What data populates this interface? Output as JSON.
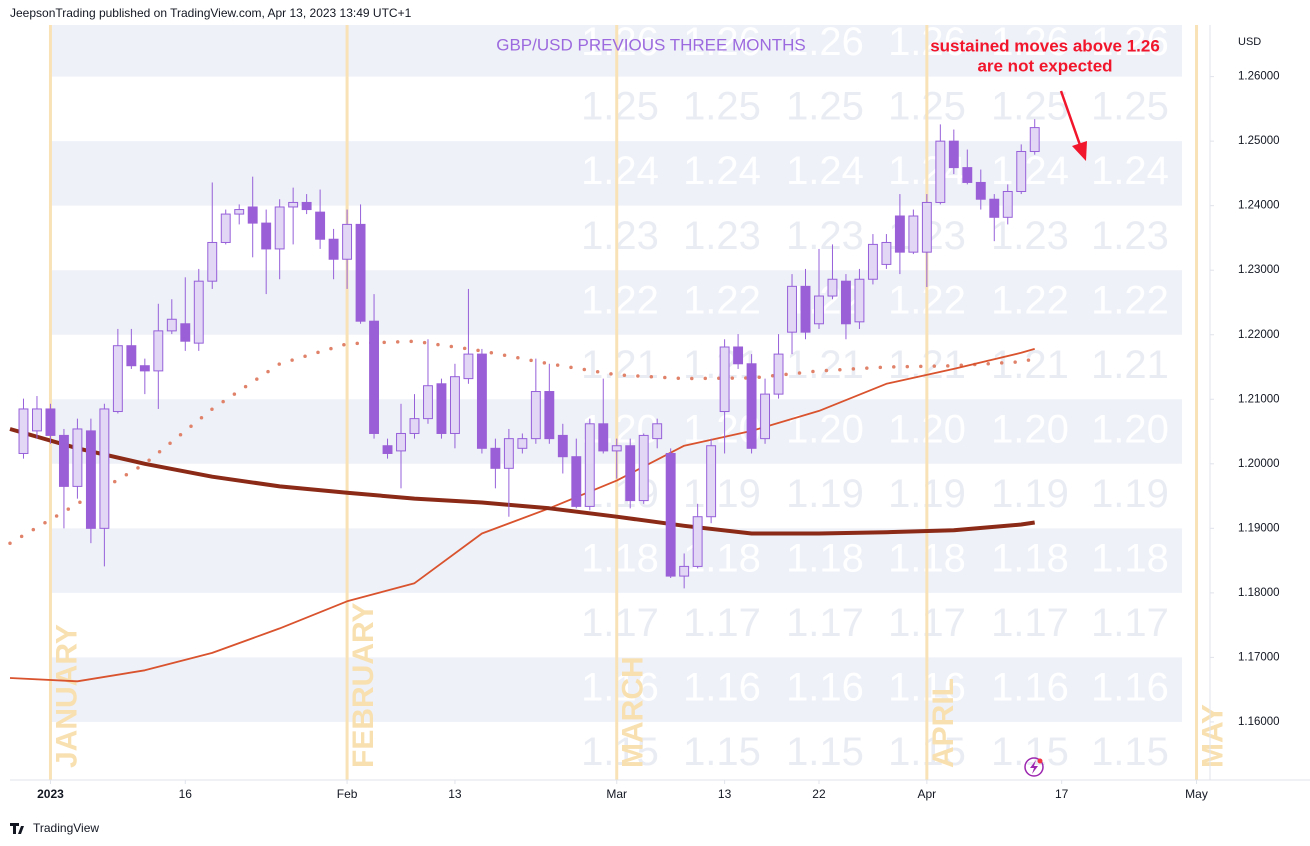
{
  "header": "JeepsonTrading published on TradingView.com, Apr 13, 2023 13:49 UTC+1",
  "footer": "TradingView",
  "chart_data": {
    "type": "candlestick",
    "title": "GBP/USD PREVIOUS THREE MONTHS",
    "annotation": [
      "sustained moves above 1.26",
      "are not expected"
    ],
    "y_axis_label": "USD",
    "x": [
      "2022-12-29",
      "2022-12-30",
      "2023-01-02",
      "2023-01-03",
      "2023-01-04",
      "2023-01-05",
      "2023-01-06",
      "2023-01-09",
      "2023-01-10",
      "2023-01-11",
      "2023-01-12",
      "2023-01-13",
      "2023-01-16",
      "2023-01-17",
      "2023-01-18",
      "2023-01-19",
      "2023-01-20",
      "2023-01-23",
      "2023-01-24",
      "2023-01-25",
      "2023-01-26",
      "2023-01-27",
      "2023-01-30",
      "2023-01-31",
      "2023-02-01",
      "2023-02-02",
      "2023-02-03",
      "2023-02-06",
      "2023-02-07",
      "2023-02-08",
      "2023-02-09",
      "2023-02-10",
      "2023-02-13",
      "2023-02-14",
      "2023-02-15",
      "2023-02-16",
      "2023-02-17",
      "2023-02-20",
      "2023-02-21",
      "2023-02-22",
      "2023-02-23",
      "2023-02-24",
      "2023-02-27",
      "2023-02-28",
      "2023-03-01",
      "2023-03-02",
      "2023-03-03",
      "2023-03-06",
      "2023-03-07",
      "2023-03-08",
      "2023-03-09",
      "2023-03-10",
      "2023-03-13",
      "2023-03-14",
      "2023-03-15",
      "2023-03-16",
      "2023-03-17",
      "2023-03-20",
      "2023-03-21",
      "2023-03-22",
      "2023-03-23",
      "2023-03-24",
      "2023-03-27",
      "2023-03-28",
      "2023-03-29",
      "2023-03-30",
      "2023-03-31",
      "2023-04-03",
      "2023-04-04",
      "2023-04-05",
      "2023-04-06",
      "2023-04-07",
      "2023-04-10",
      "2023-04-11",
      "2023-04-12",
      "2023-04-13"
    ],
    "open": [
      1.2016,
      1.2051,
      1.2085,
      1.2044,
      1.1965,
      1.2051,
      1.19,
      1.2081,
      1.2183,
      1.2152,
      1.2144,
      1.2206,
      1.2217,
      1.2187,
      1.2283,
      1.2343,
      1.2387,
      1.2398,
      1.2373,
      1.2333,
      1.2398,
      1.2405,
      1.239,
      1.2348,
      1.2317,
      1.2371,
      1.2221,
      1.2028,
      1.202,
      1.2047,
      1.207,
      1.2124,
      1.2047,
      1.2132,
      1.217,
      1.2024,
      1.1993,
      1.2024,
      1.2039,
      1.2112,
      1.2044,
      1.2011,
      1.1934,
      1.2062,
      1.202,
      1.2028,
      1.1943,
      1.2039,
      1.2016,
      1.1826,
      1.1841,
      1.1918,
      1.2081,
      1.2181,
      1.2155,
      1.2039,
      1.2108,
      1.2204,
      1.2275,
      1.2217,
      1.226,
      1.2283,
      1.222,
      1.2286,
      1.2309,
      1.2384,
      1.2328,
      1.2328,
      1.2405,
      1.25,
      1.2459,
      1.2436,
      1.241,
      1.2382,
      1.2422,
      1.2484
    ],
    "high": [
      1.2101,
      1.2105,
      1.2093,
      1.2054,
      1.207,
      1.207,
      1.2093,
      1.2209,
      1.2209,
      1.2163,
      1.2248,
      1.2255,
      1.2289,
      1.2302,
      1.2436,
      1.2394,
      1.2402,
      1.2445,
      1.2394,
      1.241,
      1.2428,
      1.2418,
      1.2425,
      1.2364,
      1.2394,
      1.2402,
      1.2263,
      1.2039,
      1.2093,
      1.2108,
      1.2193,
      1.2132,
      1.2155,
      1.2271,
      1.2178,
      1.2039,
      1.2054,
      1.2047,
      1.2163,
      1.2155,
      1.2062,
      1.2039,
      1.207,
      1.2132,
      1.2039,
      1.2039,
      1.2047,
      1.207,
      1.2024,
      1.1861,
      1.1938,
      1.2039,
      1.2193,
      1.2201,
      1.217,
      1.2132,
      1.2201,
      1.2294,
      1.2302,
      1.2333,
      1.234,
      1.2294,
      1.2302,
      1.2356,
      1.2356,
      1.2418,
      1.2394,
      1.2418,
      1.2526,
      1.2518,
      1.2487,
      1.2456,
      1.2418,
      1.2433,
      1.2495,
      1.2534
    ],
    "low": [
      1.2008,
      1.2039,
      1.2031,
      1.19,
      1.1946,
      1.1877,
      1.1841,
      1.2078,
      1.2147,
      1.2108,
      1.2085,
      1.2201,
      1.2175,
      1.2175,
      1.2271,
      1.234,
      1.2371,
      1.232,
      1.2263,
      1.2286,
      1.234,
      1.2387,
      1.2333,
      1.2286,
      1.2271,
      1.2217,
      1.2039,
      1.2008,
      1.1962,
      1.2039,
      1.2062,
      1.2039,
      1.2024,
      1.2124,
      1.2016,
      1.1962,
      1.1918,
      1.2016,
      1.2031,
      1.2031,
      1.1985,
      1.1931,
      1.1928,
      1.2016,
      1.1977,
      1.1931,
      1.1938,
      1.2024,
      1.1823,
      1.1807,
      1.1838,
      1.1908,
      1.2016,
      1.2147,
      1.2016,
      1.2031,
      1.2101,
      1.217,
      1.2193,
      1.2209,
      1.2255,
      1.2193,
      1.2209,
      1.2278,
      1.2302,
      1.2294,
      1.2325,
      1.2274,
      1.2402,
      1.2449,
      1.2433,
      1.2394,
      1.2345,
      1.2371,
      1.2418,
      1.2479
    ],
    "close": [
      1.2085,
      1.2085,
      1.2044,
      1.1965,
      1.2054,
      1.19,
      1.2085,
      1.2183,
      1.2152,
      1.2144,
      1.2206,
      1.2224,
      1.219,
      1.2283,
      1.2343,
      1.2387,
      1.2394,
      1.2373,
      1.2333,
      1.2398,
      1.2405,
      1.2394,
      1.2348,
      1.2317,
      1.2371,
      1.2221,
      1.2047,
      1.2016,
      1.2047,
      1.207,
      1.2121,
      1.2047,
      1.2135,
      1.217,
      1.2024,
      1.1993,
      1.2039,
      1.2039,
      1.2112,
      1.2039,
      1.2011,
      1.1934,
      1.2062,
      1.202,
      1.2028,
      1.1943,
      1.2044,
      1.2062,
      1.1826,
      1.1841,
      1.1918,
      1.2028,
      1.2181,
      1.2155,
      1.2024,
      1.2108,
      1.217,
      1.2275,
      1.2204,
      1.226,
      1.2286,
      1.2217,
      1.2286,
      1.234,
      1.2343,
      1.2328,
      1.2384,
      1.2405,
      1.25,
      1.2459,
      1.2436,
      1.241,
      1.2382,
      1.2422,
      1.2484,
      1.2521
    ],
    "up_color": "#e3d7f6",
    "down_color": "#9a5fd6",
    "wick_color": "#9660d9",
    "lines": [
      {
        "color": "#e0826a",
        "style": "dotted",
        "x": [
          "2022-12-28",
          "2023-01-04",
          "2023-01-11",
          "2023-01-18",
          "2023-01-25",
          "2023-02-01",
          "2023-02-08",
          "2023-02-15",
          "2023-02-22",
          "2023-03-01",
          "2023-03-08",
          "2023-03-15",
          "2023-03-22",
          "2023-03-29",
          "2023-04-05",
          "2023-04-12",
          "2023-04-13"
        ],
        "values": [
          1.1877,
          1.1938,
          1.2,
          1.2085,
          1.2155,
          1.2186,
          1.219,
          1.2175,
          1.2155,
          1.2138,
          1.2132,
          1.2133,
          1.2144,
          1.215,
          1.2152,
          1.2158,
          1.2163
        ]
      },
      {
        "color": "#d9532e",
        "style": "solid",
        "width": 1.8,
        "x": [
          "2022-12-28",
          "2023-01-04",
          "2023-01-11",
          "2023-01-18",
          "2023-01-25",
          "2023-02-01",
          "2023-02-08",
          "2023-02-15",
          "2023-02-22",
          "2023-03-01",
          "2023-03-08",
          "2023-03-15",
          "2023-03-22",
          "2023-03-29",
          "2023-04-05",
          "2023-04-12",
          "2023-04-13"
        ],
        "values": [
          1.1668,
          1.1663,
          1.168,
          1.1707,
          1.1745,
          1.1787,
          1.1815,
          1.1892,
          1.1931,
          1.1974,
          1.2028,
          1.2051,
          1.2082,
          1.2124,
          1.2147,
          1.2172,
          1.2178
        ]
      },
      {
        "color": "#8b2a17",
        "style": "solid",
        "width": 4,
        "x": [
          "2022-12-28",
          "2023-01-04",
          "2023-01-11",
          "2023-01-18",
          "2023-01-25",
          "2023-02-01",
          "2023-02-08",
          "2023-02-15",
          "2023-02-22",
          "2023-03-01",
          "2023-03-08",
          "2023-03-15",
          "2023-03-22",
          "2023-03-29",
          "2023-04-05",
          "2023-04-12",
          "2023-04-13"
        ],
        "values": [
          1.2054,
          1.2024,
          1.2,
          1.198,
          1.1965,
          1.1955,
          1.1946,
          1.194,
          1.1931,
          1.1918,
          1.1904,
          1.1892,
          1.1892,
          1.1894,
          1.1897,
          1.1906,
          1.1909
        ]
      }
    ],
    "months": [
      {
        "x": "2023-01-02",
        "label": "JANUARY"
      },
      {
        "x": "2023-02-01",
        "label": "FEBRUARY"
      },
      {
        "x": "2023-03-01",
        "label": "MARCH"
      },
      {
        "x": "2023-04-03",
        "label": "APRIL"
      },
      {
        "x": "2023-05-01",
        "label": "MAY"
      }
    ],
    "watermarks": [
      1.26,
      1.25,
      1.24,
      1.23,
      1.22,
      1.21,
      {
        "value": 1.2,
        "label": "1.20"
      },
      1.19,
      1.18,
      1.17,
      1.16,
      1.15
    ],
    "xlim": [
      "2022-12-28",
      "2023-05-02"
    ],
    "xticks": [
      {
        "value": "2023-01-02",
        "label": "2023"
      },
      {
        "value": "2023-01-16",
        "label": "16"
      },
      {
        "value": "2023-02-01",
        "label": "Feb"
      },
      {
        "value": "2023-02-13",
        "label": "13"
      },
      {
        "value": "2023-03-01",
        "label": "Mar"
      },
      {
        "value": "2023-03-13",
        "label": "13"
      },
      {
        "value": "2023-03-22",
        "label": "22"
      },
      {
        "value": "2023-04-03",
        "label": "Apr"
      },
      {
        "value": "2023-04-17",
        "label": "17"
      },
      {
        "value": "2023-05-01",
        "label": "May"
      }
    ],
    "ylim": [
      1.151,
      1.268
    ],
    "yticks": [
      {
        "value": 1.16,
        "label": "1.16000"
      },
      {
        "value": 1.17,
        "label": "1.17000"
      },
      {
        "value": 1.18,
        "label": "1.18000"
      },
      {
        "value": 1.19,
        "label": "1.19000"
      },
      {
        "value": 1.2,
        "label": "1.20000"
      },
      {
        "value": 1.21,
        "label": "1.21000"
      },
      {
        "value": 1.22,
        "label": "1.22000"
      },
      {
        "value": 1.23,
        "label": "1.23000"
      },
      {
        "value": 1.24,
        "label": "1.24000"
      },
      {
        "value": 1.25,
        "label": "1.25000"
      },
      {
        "value": 1.26,
        "label": "1.26000"
      }
    ],
    "band_color": "#eef1f8"
  }
}
